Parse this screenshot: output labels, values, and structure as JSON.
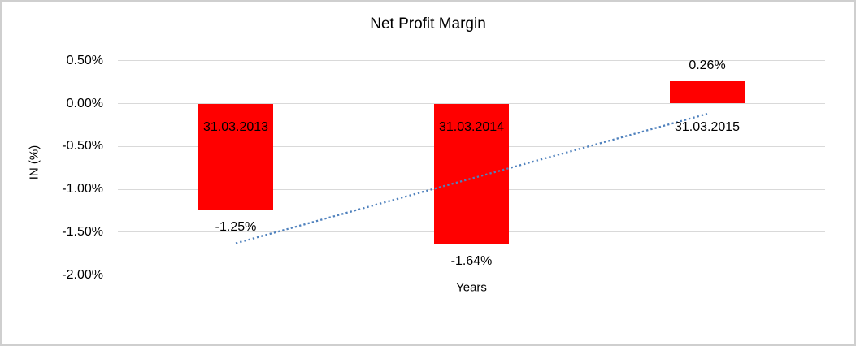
{
  "chart_data": {
    "type": "bar",
    "title": "Net Profit Margin",
    "xlabel": "Years",
    "ylabel": "IN (%)",
    "categories": [
      "31.03.2013",
      "31.03.2014",
      "31.03.2015"
    ],
    "values": [
      -1.25,
      -1.64,
      0.26
    ],
    "value_labels": [
      "-1.25%",
      "-1.64%",
      "0.26%"
    ],
    "yticks": [
      0.5,
      0.0,
      -0.5,
      -1.0,
      -1.5,
      -2.0
    ],
    "ytick_labels": [
      "0.50%",
      "0.00%",
      "-0.50%",
      "-1.00%",
      "-1.50%",
      "-2.00%"
    ],
    "ylim": [
      -2.0,
      0.5
    ],
    "grid": true,
    "legend": false,
    "bar_color": "#FF0000",
    "gridline_color": "#D9D9D9",
    "text_color": "#000000",
    "trendline": {
      "style": "dotted",
      "color": "#4F81BD",
      "start_category": "31.03.2013",
      "end_category": "31.03.2015",
      "start_value": -1.63,
      "end_value": -0.12
    }
  }
}
